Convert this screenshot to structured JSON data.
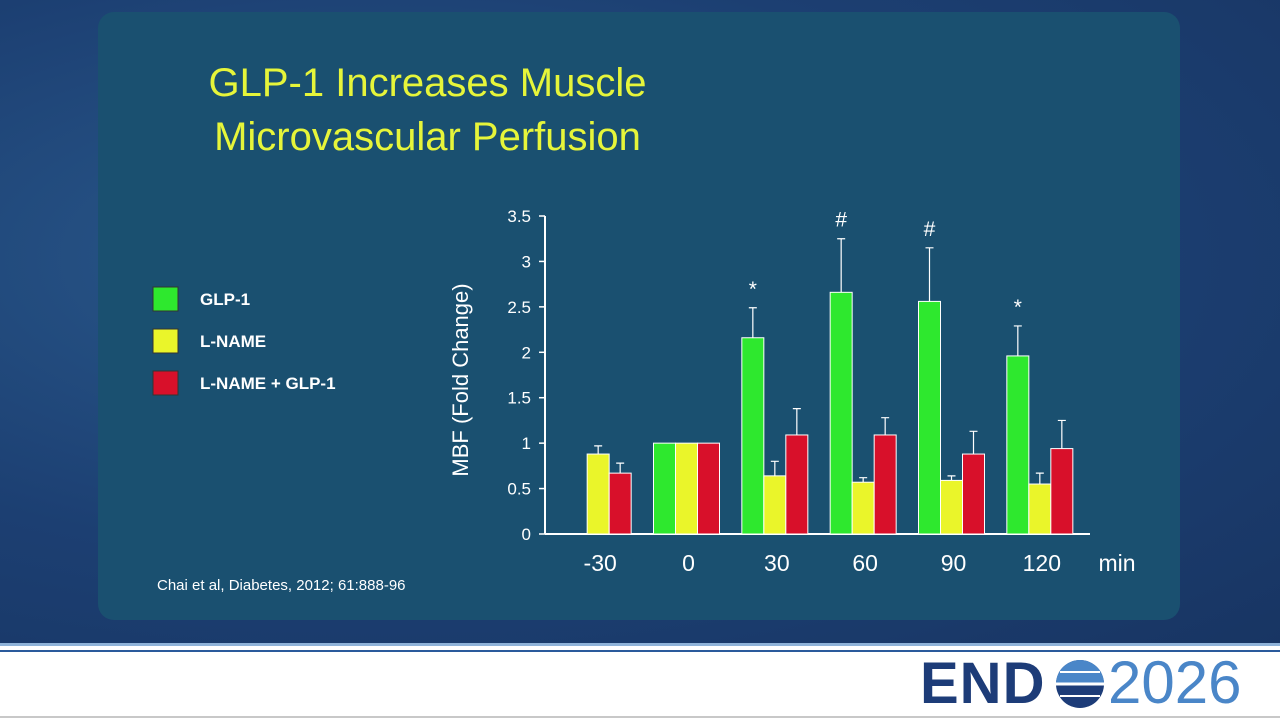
{
  "title": "GLP-1 Increases Muscle Microvascular Perfusion",
  "citation": "Chai et al, Diabetes, 2012; 61:888-96",
  "logo": {
    "left": "END",
    "right": "2026"
  },
  "chart_data": {
    "type": "bar",
    "categories": [
      "-30",
      "0",
      "30",
      "60",
      "90",
      "120"
    ],
    "x_unit": "min",
    "ylabel": "MBF (Fold Change)",
    "ylim": [
      0,
      3.5
    ],
    "yticks": [
      0,
      0.5,
      1,
      1.5,
      2,
      2.5,
      3,
      3.5
    ],
    "legend": "left",
    "series": [
      {
        "name": "GLP-1",
        "color": "#2ee82e",
        "values": [
          null,
          1.0,
          2.16,
          2.66,
          2.56,
          1.96
        ],
        "errors": [
          null,
          null,
          0.33,
          0.59,
          0.59,
          0.33
        ]
      },
      {
        "name": "L-NAME",
        "color": "#eaf52a",
        "values": [
          0.88,
          1.0,
          0.64,
          0.57,
          0.59,
          0.55
        ],
        "errors": [
          0.09,
          null,
          0.16,
          0.05,
          0.05,
          0.12
        ]
      },
      {
        "name": "L-NAME + GLP-1",
        "color": "#d8102a",
        "values": [
          0.67,
          1.0,
          1.09,
          1.09,
          0.88,
          0.94
        ],
        "errors": [
          0.11,
          null,
          0.29,
          0.19,
          0.25,
          0.31
        ]
      }
    ],
    "annotations": [
      null,
      null,
      "*",
      "#",
      "#",
      "*"
    ]
  }
}
